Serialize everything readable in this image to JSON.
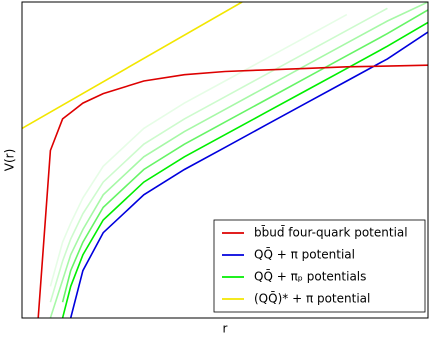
{
  "chart_data": {
    "type": "line",
    "xlabel": "r",
    "ylabel": "V(r)",
    "xlim": [
      0,
      1
    ],
    "ylim": [
      0,
      1
    ],
    "x": [
      0.04,
      0.07,
      0.1,
      0.12,
      0.15,
      0.2,
      0.3,
      0.4,
      0.5,
      0.6,
      0.7,
      0.8,
      0.9,
      1.0
    ],
    "legend": "lower right",
    "series": [
      {
        "name": "bb̄ud̄ four-quark potential",
        "color": "#dd0000",
        "values": [
          0,
          0.53,
          0.63,
          0.65,
          0.68,
          0.71,
          0.75,
          0.77,
          0.78,
          0.785,
          0.79,
          0.795,
          0.797,
          0.8
        ]
      },
      {
        "name": "QQ̄ + π potential",
        "color": "#0000dd",
        "values": [
          null,
          null,
          null,
          0,
          0.15,
          0.27,
          0.39,
          0.47,
          0.54,
          0.61,
          0.68,
          0.75,
          0.82,
          0.905
        ]
      },
      {
        "name": "QQ̄ + πₚ potentials",
        "color": "#00ee00",
        "values": [
          null,
          null,
          0,
          0.1,
          0.2,
          0.31,
          0.43,
          0.51,
          0.58,
          0.65,
          0.72,
          0.79,
          0.86,
          0.935
        ]
      },
      {
        "color": "#66f466",
        "values": [
          null,
          null,
          0.05,
          0.15,
          0.24,
          0.35,
          0.47,
          0.55,
          0.62,
          0.69,
          0.76,
          0.83,
          0.9,
          0.975
        ]
      },
      {
        "color": "#a6f8a6",
        "values": [
          null,
          0,
          0.12,
          0.2,
          0.28,
          0.39,
          0.51,
          0.59,
          0.66,
          0.73,
          0.8,
          0.87,
          0.94,
          1.0
        ]
      },
      {
        "color": "#cdfbcd",
        "values": [
          null,
          0.05,
          0.18,
          0.25,
          0.33,
          0.43,
          0.55,
          0.63,
          0.7,
          0.77,
          0.84,
          0.91,
          0.98,
          null
        ]
      },
      {
        "color": "#e6fde6",
        "values": [
          null,
          0.1,
          0.24,
          0.3,
          0.38,
          0.48,
          0.6,
          0.68,
          0.75,
          0.82,
          0.89,
          0.96,
          null,
          null
        ]
      },
      {
        "name": "(QQ̄)* + π potential",
        "color": "#f2e600",
        "x": [
          0,
          0.542
        ],
        "values": [
          0.6,
          1.0
        ]
      }
    ]
  }
}
